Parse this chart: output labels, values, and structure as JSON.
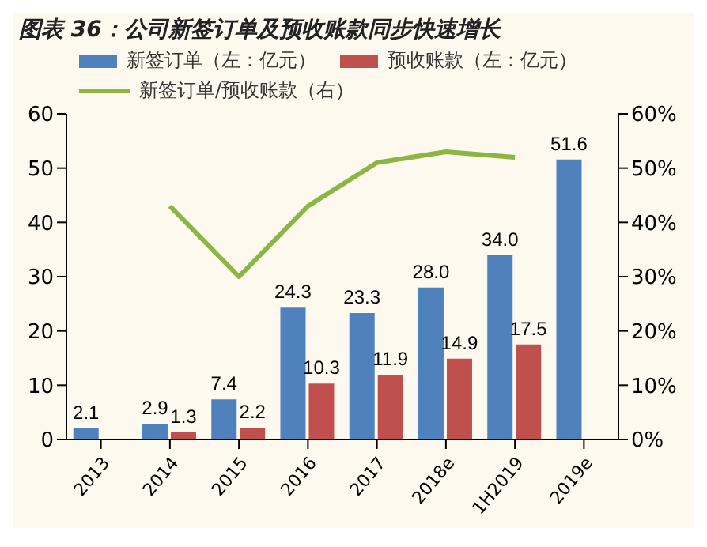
{
  "chart_data": {
    "type": "bar",
    "title": "图表 36：公司新签订单及预收账款同步快速增长",
    "categories": [
      "2013",
      "2014",
      "2015",
      "2016",
      "2017",
      "2018e",
      "1H2019",
      "2019e"
    ],
    "series": [
      {
        "name": "新签订单（左：亿元）",
        "color": "#4f81bd",
        "values": [
          2.1,
          2.9,
          7.4,
          24.3,
          23.3,
          28.0,
          34.0,
          51.6
        ],
        "value_labels": [
          "2.1",
          "2.9",
          "7.4",
          "24.3",
          "23.3",
          "28.0",
          "34.0",
          "51.6"
        ]
      },
      {
        "name": "预收账款（左：亿元）",
        "color": "#c0504d",
        "values": [
          null,
          1.3,
          2.2,
          10.3,
          11.9,
          14.9,
          17.5,
          null
        ],
        "value_labels": [
          null,
          "1.3",
          "2.2",
          "10.3",
          "11.9",
          "14.9",
          "17.5",
          null
        ]
      },
      {
        "name": "新签订单/预收账款（右）",
        "type": "line",
        "axis": "y2",
        "color": "#8db544",
        "values": [
          null,
          43,
          30,
          43,
          51,
          53,
          52,
          null
        ]
      }
    ],
    "ylim": [
      0,
      60
    ],
    "yticks": [
      0,
      10,
      20,
      30,
      40,
      50,
      60
    ],
    "y2lim": [
      0,
      60
    ],
    "y2ticks": [
      {
        "value": 0,
        "label": "0%"
      },
      {
        "value": 10,
        "label": "10%"
      },
      {
        "value": 20,
        "label": "20%"
      },
      {
        "value": 30,
        "label": "30%"
      },
      {
        "value": 40,
        "label": "40%"
      },
      {
        "value": 50,
        "label": "50%"
      },
      {
        "value": 60,
        "label": "60%"
      }
    ],
    "legend": "top",
    "grid": false,
    "marker": "none"
  }
}
